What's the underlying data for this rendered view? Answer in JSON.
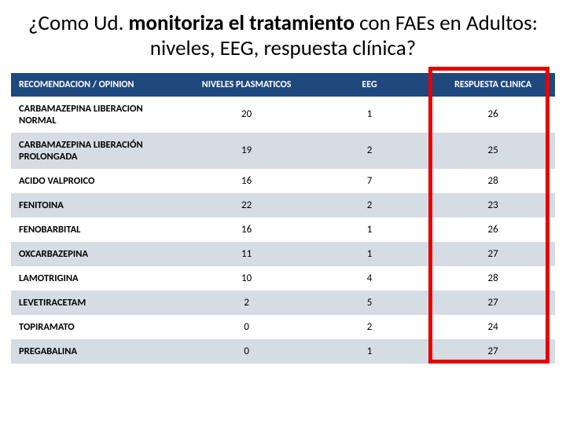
{
  "title": {
    "part1": "¿Como Ud. ",
    "bold": "monitoriza el tratamiento",
    "part2": " con FAEs en Adultos: niveles, EEG, respuesta clínica?"
  },
  "table": {
    "columns": [
      "RECOMENDACION / OPINION",
      "NIVELES PLASMATICOS",
      "EEG",
      "RESPUESTA CLINICA"
    ],
    "rows": [
      {
        "label": "CARBAMAZEPINA LIBERACION NORMAL",
        "niveles": "20",
        "eeg": "1",
        "respuesta": "26"
      },
      {
        "label": "CARBAMAZEPINA LIBERACIÓN PROLONGADA",
        "niveles": "19",
        "eeg": "2",
        "respuesta": "25"
      },
      {
        "label": "ACIDO VALPROICO",
        "niveles": "16",
        "eeg": "7",
        "respuesta": "28"
      },
      {
        "label": "FENITOINA",
        "niveles": "22",
        "eeg": "2",
        "respuesta": "23"
      },
      {
        "label": "FENOBARBITAL",
        "niveles": "16",
        "eeg": "1",
        "respuesta": "26"
      },
      {
        "label": "OXCARBAZEPINA",
        "niveles": "11",
        "eeg": "1",
        "respuesta": "27"
      },
      {
        "label": "LAMOTRIGINA",
        "niveles": "10",
        "eeg": "4",
        "respuesta": "28"
      },
      {
        "label": "LEVETIRACETAM",
        "niveles": "2",
        "eeg": "5",
        "respuesta": "27"
      },
      {
        "label": "TOPIRAMATO",
        "niveles": "0",
        "eeg": "2",
        "respuesta": "24"
      },
      {
        "label": "PREGABALINA",
        "niveles": "0",
        "eeg": "1",
        "respuesta": "27"
      }
    ],
    "header_bg": "#1f497d",
    "header_color": "#ffffff",
    "band_colors": [
      "#ffffff",
      "#d5dce4"
    ],
    "highlight": {
      "border_color": "#e60000",
      "border_width": 5
    }
  }
}
